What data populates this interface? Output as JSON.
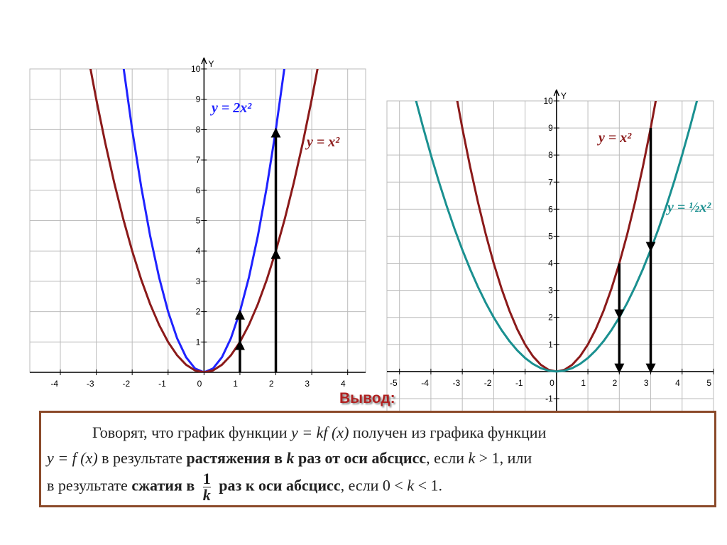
{
  "chart_data": [
    {
      "type": "line",
      "xlim": [
        -4.85,
        4.5
      ],
      "ylim": [
        0,
        10
      ],
      "xticks": [
        -4,
        -3,
        -2,
        -1,
        0,
        1,
        2,
        3,
        4
      ],
      "yticks": [
        1,
        2,
        3,
        4,
        5,
        6,
        7,
        8,
        9,
        10
      ],
      "grid": true,
      "y_label": "Y",
      "series": [
        {
          "name": "y = 2x²",
          "color": "#1f22ff",
          "x": [
            -2.25,
            -2,
            -1.75,
            -1.5,
            -1.25,
            -1,
            -0.75,
            -0.5,
            -0.25,
            0,
            0.25,
            0.5,
            0.75,
            1,
            1.25,
            1.5,
            1.75,
            2,
            2.25
          ],
          "values": [
            10.125,
            8,
            6.125,
            4.5,
            3.125,
            2,
            1.125,
            0.5,
            0.125,
            0,
            0.125,
            0.5,
            1.125,
            2,
            3.125,
            4.5,
            6.125,
            8,
            10.125
          ]
        },
        {
          "name": "y = x²",
          "color": "#8b1a1a",
          "x": [
            -3.25,
            -3,
            -2.75,
            -2.5,
            -2.25,
            -2,
            -1.75,
            -1.5,
            -1.25,
            -1,
            -0.75,
            -0.5,
            -0.25,
            0,
            0.25,
            0.5,
            0.75,
            1,
            1.25,
            1.5,
            1.75,
            2,
            2.25,
            2.5,
            2.75,
            3,
            3.25
          ],
          "values": [
            10.5625,
            9,
            7.5625,
            6.25,
            5.0625,
            4,
            3.0625,
            2.25,
            1.5625,
            1,
            0.5625,
            0.25,
            0.0625,
            0,
            0.0625,
            0.25,
            0.5625,
            1,
            1.5625,
            2.25,
            3.0625,
            4,
            5.0625,
            6.25,
            7.5625,
            9,
            10.5625
          ]
        }
      ],
      "arrows": [
        {
          "x": 1,
          "from": 0,
          "to": 1
        },
        {
          "x": 1,
          "from": 1,
          "to": 2
        },
        {
          "x": 2,
          "from": 0,
          "to": 4
        },
        {
          "x": 2,
          "from": 4,
          "to": 8
        }
      ]
    },
    {
      "type": "line",
      "xlim": [
        -5.4,
        5
      ],
      "ylim": [
        -1.5,
        10
      ],
      "xticks": [
        -5,
        -4,
        -3,
        -2,
        -1,
        0,
        1,
        2,
        3,
        4,
        5
      ],
      "yticks": [
        -1,
        1,
        2,
        3,
        4,
        5,
        6,
        7,
        8,
        9,
        10
      ],
      "grid": true,
      "y_label": "Y",
      "series": [
        {
          "name": "y = x²",
          "color": "#8b1a1a",
          "x": [
            -3.25,
            -3,
            -2.75,
            -2.5,
            -2.25,
            -2,
            -1.75,
            -1.5,
            -1.25,
            -1,
            -0.75,
            -0.5,
            -0.25,
            0,
            0.25,
            0.5,
            0.75,
            1,
            1.25,
            1.5,
            1.75,
            2,
            2.25,
            2.5,
            2.75,
            3,
            3.25
          ],
          "values": [
            10.5625,
            9,
            7.5625,
            6.25,
            5.0625,
            4,
            3.0625,
            2.25,
            1.5625,
            1,
            0.5625,
            0.25,
            0.0625,
            0,
            0.0625,
            0.25,
            0.5625,
            1,
            1.5625,
            2.25,
            3.0625,
            4,
            5.0625,
            6.25,
            7.5625,
            9,
            10.5625
          ]
        },
        {
          "name": "y = ½x²",
          "color": "#1a9090",
          "x": [
            -4.5,
            -4.25,
            -4,
            -3.75,
            -3.5,
            -3.25,
            -3,
            -2.75,
            -2.5,
            -2.25,
            -2,
            -1.75,
            -1.5,
            -1.25,
            -1,
            -0.75,
            -0.5,
            -0.25,
            0,
            0.25,
            0.5,
            0.75,
            1,
            1.25,
            1.5,
            1.75,
            2,
            2.25,
            2.5,
            2.75,
            3,
            3.25,
            3.5,
            3.75,
            4,
            4.25,
            4.5
          ],
          "values": [
            10.125,
            9.03125,
            8,
            7.03125,
            6.125,
            5.28125,
            4.5,
            3.78125,
            3.125,
            2.53125,
            2,
            1.53125,
            1.125,
            0.78125,
            0.5,
            0.28125,
            0.125,
            0.03125,
            0,
            0.03125,
            0.125,
            0.28125,
            0.5,
            0.78125,
            1.125,
            1.53125,
            2,
            2.53125,
            3.125,
            3.78125,
            4.5,
            5.28125,
            6.125,
            7.03125,
            8,
            9.03125,
            10.125
          ]
        }
      ],
      "arrows": [
        {
          "x": 2,
          "from": 4,
          "to": 2
        },
        {
          "x": 2,
          "from": 2,
          "to": 0
        },
        {
          "x": 3,
          "from": 9,
          "to": 4.5
        },
        {
          "x": 3,
          "from": 4.5,
          "to": 0
        }
      ]
    }
  ],
  "conclusion": {
    "heading": "Вывод:",
    "lines": [
      [
        {
          "text": "Говорят, что график функции "
        },
        {
          "text": "y = kf (x)",
          "style": "i"
        },
        {
          "text": " получен из графика функции"
        }
      ],
      [
        {
          "text": "y = f (x)",
          "style": "i"
        },
        {
          "text": " в результате "
        },
        {
          "text": "растяжения в ",
          "style": "b"
        },
        {
          "text": "k",
          "style": "bi"
        },
        {
          "text": " раз от оси абсцисс",
          "style": "b"
        },
        {
          "text": ", если "
        },
        {
          "text": "k",
          "style": "i"
        },
        {
          "text": " > 1, или"
        }
      ],
      [
        {
          "text": "в результате "
        },
        {
          "text": "сжатия в ",
          "style": "b"
        },
        {
          "num": "1",
          "den": "k"
        },
        {
          "text": " раз к оси абсцисс",
          "style": "b"
        },
        {
          "text": ", если 0 < "
        },
        {
          "text": "k",
          "style": "i"
        },
        {
          "text": " < 1."
        }
      ]
    ]
  }
}
